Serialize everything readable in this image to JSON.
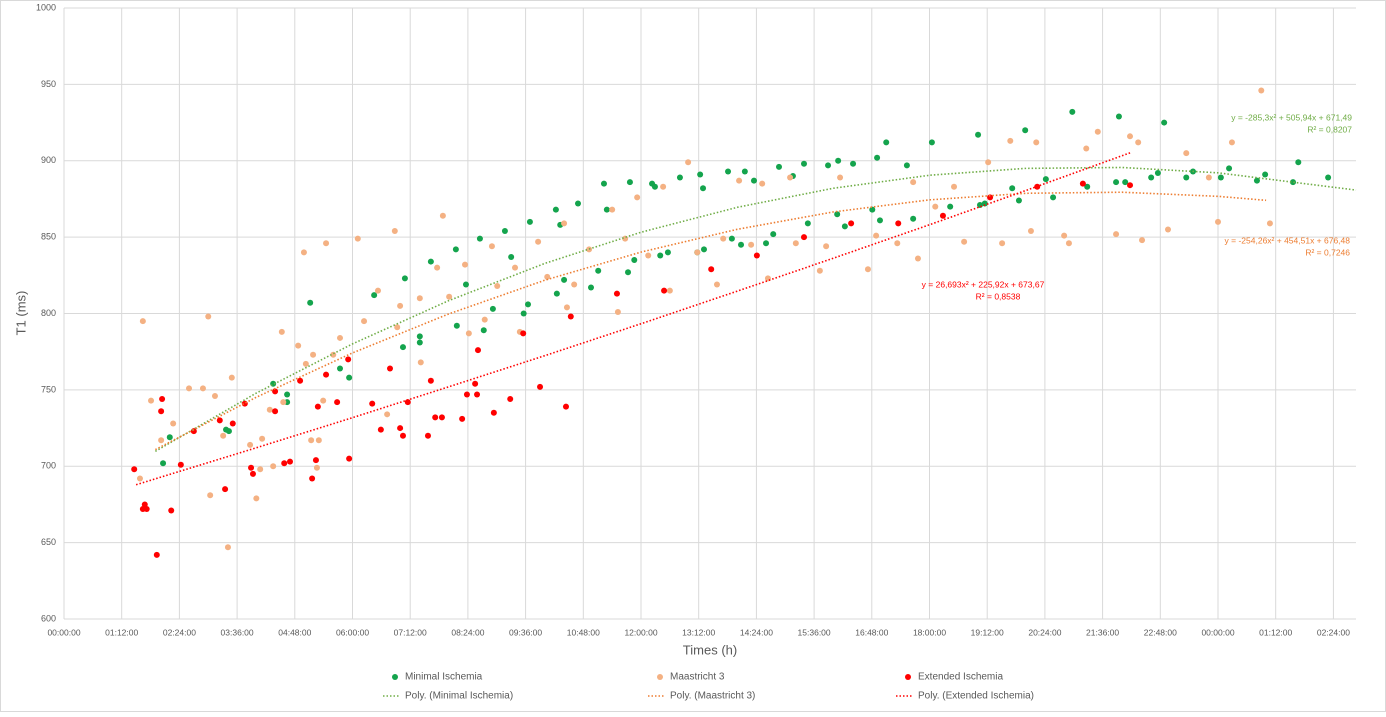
{
  "chart_data": {
    "type": "scatter",
    "xlabel": "Times (h)",
    "ylabel": "T1 (ms)",
    "xlim": [
      0,
      26.87
    ],
    "ylim": [
      600,
      1000
    ],
    "yticks": [
      600,
      650,
      700,
      750,
      800,
      850,
      900,
      950,
      1000
    ],
    "xticks": [
      {
        "value": 0,
        "label": "00:00:00"
      },
      {
        "value": 1.2,
        "label": "01:12:00"
      },
      {
        "value": 2.4,
        "label": "02:24:00"
      },
      {
        "value": 3.6,
        "label": "03:36:00"
      },
      {
        "value": 4.8,
        "label": "04:48:00"
      },
      {
        "value": 6,
        "label": "06:00:00"
      },
      {
        "value": 7.2,
        "label": "07:12:00"
      },
      {
        "value": 8.4,
        "label": "08:24:00"
      },
      {
        "value": 9.6,
        "label": "09:36:00"
      },
      {
        "value": 10.8,
        "label": "10:48:00"
      },
      {
        "value": 12,
        "label": "12:00:00"
      },
      {
        "value": 13.2,
        "label": "13:12:00"
      },
      {
        "value": 14.4,
        "label": "14:24:00"
      },
      {
        "value": 15.6,
        "label": "15:36:00"
      },
      {
        "value": 16.8,
        "label": "16:48:00"
      },
      {
        "value": 18,
        "label": "18:00:00"
      },
      {
        "value": 19.2,
        "label": "19:12:00"
      },
      {
        "value": 20.4,
        "label": "20:24:00"
      },
      {
        "value": 21.6,
        "label": "21:36:00"
      },
      {
        "value": 22.8,
        "label": "22:48:00"
      },
      {
        "value": 24,
        "label": "00:00:00"
      },
      {
        "value": 25.2,
        "label": "01:12:00"
      },
      {
        "value": 26.4,
        "label": "02:24:00"
      }
    ],
    "grid": true,
    "legend": "bottom",
    "series": [
      {
        "name": "Minimal Ischemia",
        "color": "#14a44d",
        "x": [
          2.06,
          2.2,
          3.37,
          3.43,
          4.35,
          4.64,
          4.64,
          5.12,
          5.74,
          5.93,
          6.45,
          7.05,
          7.09,
          7.4,
          7.4,
          7.63,
          8.15,
          8.36,
          8.17,
          8.65,
          8.73,
          8.92,
          9.17,
          9.3,
          9.56,
          9.65,
          9.69,
          10.23,
          10.25,
          10.32,
          10.4,
          10.69,
          10.96,
          11.11,
          11.23,
          11.29,
          11.73,
          11.77,
          11.86,
          12.23,
          12.29,
          12.4,
          12.56,
          12.81,
          13.17,
          13.23,
          13.29,
          13.31,
          13.81,
          13.89,
          14.08,
          14.16,
          14.35,
          14.6,
          14.75,
          14.87,
          15.16,
          15.39,
          15.47,
          15.89,
          16.1,
          16.08,
          16.24,
          16.41,
          16.81,
          16.91,
          16.97,
          17.1,
          17.53,
          17.66,
          18.05,
          18.43,
          19.01,
          19.05,
          19.15,
          19.72,
          19.86,
          19.99,
          20.42,
          20.57,
          20.97,
          21.28,
          21.88,
          21.94,
          22.07,
          22.61,
          22.75,
          22.88,
          23.34,
          23.48,
          24.06,
          24.23,
          24.81,
          24.98,
          25.67,
          25.56,
          26.29
        ],
        "values": [
          702,
          719,
          724,
          723,
          754,
          742,
          747,
          807,
          764,
          758,
          812,
          778,
          823,
          781,
          785,
          834,
          842,
          819,
          792,
          849,
          789,
          803,
          854,
          837,
          800,
          806,
          860,
          868,
          813,
          858,
          822,
          872,
          817,
          828,
          885,
          868,
          827,
          886,
          835,
          885,
          883,
          838,
          840,
          889,
          840,
          891,
          882,
          842,
          893,
          849,
          845,
          893,
          887,
          846,
          852,
          896,
          890,
          898,
          859,
          897,
          900,
          865,
          857,
          898,
          868,
          902,
          861,
          912,
          897,
          862,
          912,
          870,
          917,
          871,
          872,
          882,
          874,
          920,
          888,
          876,
          932,
          883,
          886,
          929,
          886,
          889,
          892,
          925,
          889,
          893,
          889,
          895,
          887,
          891,
          899,
          886,
          889
        ]
      },
      {
        "name": "Maastricht 3",
        "color": "#f4b183",
        "x": [
          1.64,
          1.58,
          1.81,
          2.02,
          2.27,
          2.6,
          2.89,
          3.0,
          3.04,
          3.14,
          3.31,
          3.41,
          3.49,
          3.87,
          4.0,
          4.08,
          4.12,
          4.28,
          4.35,
          4.53,
          4.56,
          4.87,
          4.99,
          5.03,
          5.14,
          5.18,
          5.26,
          5.3,
          5.39,
          5.45,
          5.6,
          5.74,
          6.11,
          6.24,
          6.53,
          6.72,
          6.88,
          6.93,
          6.99,
          7.4,
          7.42,
          7.76,
          7.88,
          8.01,
          8.34,
          8.42,
          8.75,
          8.9,
          9.01,
          9.38,
          9.48,
          9.86,
          10.05,
          10.4,
          10.46,
          10.61,
          10.92,
          11.4,
          11.52,
          11.67,
          11.92,
          12.15,
          12.46,
          12.6,
          12.98,
          13.17,
          13.58,
          13.71,
          14.04,
          14.29,
          14.52,
          14.64,
          15.1,
          15.22,
          15.72,
          15.85,
          16.14,
          16.72,
          16.89,
          17.33,
          17.66,
          17.76,
          18.12,
          18.51,
          18.72,
          19.22,
          19.51,
          19.68,
          20.11,
          20.22,
          20.8,
          20.9,
          21.26,
          21.5,
          21.88,
          22.17,
          22.34,
          22.42,
          22.96,
          23.34,
          23.81,
          24.0,
          24.29,
          24.9,
          25.08
        ],
        "values": [
          795,
          692,
          743,
          717,
          728,
          751,
          751,
          798,
          681,
          746,
          720,
          647,
          758,
          714,
          679,
          698,
          718,
          737,
          700,
          788,
          742,
          779,
          840,
          767,
          717,
          773,
          699,
          717,
          743,
          846,
          773,
          784,
          849,
          795,
          815,
          734,
          854,
          791,
          805,
          810,
          768,
          830,
          864,
          811,
          832,
          787,
          796,
          844,
          818,
          830,
          788,
          847,
          824,
          859,
          804,
          819,
          842,
          868,
          801,
          849,
          876,
          838,
          883,
          815,
          899,
          840,
          819,
          849,
          887,
          845,
          885,
          823,
          889,
          846,
          828,
          844,
          889,
          829,
          851,
          846,
          886,
          836,
          870,
          883,
          847,
          899,
          846,
          913,
          854,
          912,
          851,
          846,
          908,
          919,
          852,
          916,
          912,
          848,
          855,
          905,
          889,
          860,
          912,
          946,
          859
        ]
      },
      {
        "name": "Extended Ischemia",
        "color": "#ff0000",
        "x": [
          1.46,
          1.68,
          1.72,
          1.64,
          1.93,
          2.04,
          2.02,
          2.23,
          2.43,
          2.7,
          3.24,
          3.35,
          3.51,
          3.76,
          3.89,
          3.93,
          4.39,
          4.39,
          4.58,
          4.7,
          4.91,
          5.16,
          5.24,
          5.28,
          5.45,
          5.68,
          5.91,
          5.93,
          6.41,
          6.59,
          6.78,
          6.99,
          7.05,
          7.15,
          7.57,
          7.63,
          7.72,
          7.86,
          8.28,
          8.38,
          8.55,
          8.59,
          8.61,
          8.94,
          9.28,
          9.55,
          9.9,
          10.44,
          10.54,
          11.5,
          12.48,
          13.46,
          14.41,
          15.39,
          16.37,
          17.35,
          18.28,
          19.26,
          20.24,
          21.19,
          22.17
        ],
        "values": [
          698,
          675,
          672,
          672,
          642,
          744,
          736,
          671,
          701,
          723,
          730,
          685,
          728,
          741,
          699,
          695,
          749,
          736,
          702,
          703,
          756,
          692,
          704,
          739,
          760,
          742,
          770,
          705,
          741,
          724,
          764,
          725,
          720,
          742,
          720,
          756,
          732,
          732,
          731,
          747,
          754,
          747,
          776,
          735,
          744,
          787,
          752,
          739,
          798,
          813,
          815,
          829,
          838,
          850,
          859,
          859,
          864,
          876,
          883,
          885,
          884
        ]
      }
    ],
    "trendlines": [
      {
        "name": "Poly. (Minimal Ischemia)",
        "color": "#70ad47",
        "x": [
          1.9,
          4,
          6,
          8,
          10,
          12,
          14,
          16,
          18,
          20,
          22,
          24,
          26.87
        ],
        "values": [
          709.8,
          747.9,
          780.1,
          808.4,
          832.8,
          853.2,
          869.5,
          882.0,
          890.5,
          895.0,
          895.6,
          892.1,
          880.8
        ],
        "equation": "y = -285,3x² + 505,94x + 671,49",
        "r_squared": "R² = 0,8207"
      },
      {
        "name": "Poly. (Maastricht 3)",
        "color": "#ed7d31",
        "x": [
          1.9,
          4,
          6,
          8,
          10,
          12,
          14,
          16,
          18,
          20,
          22,
          24,
          25
        ],
        "values": [
          710.9,
          745.2,
          774.2,
          799.7,
          821.8,
          840.2,
          855.1,
          866.5,
          874.4,
          878.7,
          879.4,
          876.7,
          874.1
        ],
        "equation": "y = -254,26x² + 454,51x + 676,48",
        "r_squared": "R² = 0,7246"
      },
      {
        "name": "Poly. (Extended Ischemia)",
        "color": "#ff0000",
        "x": [
          1.5,
          4,
          6,
          8,
          10,
          12,
          14,
          16,
          18,
          20,
          22.2
        ],
        "values": [
          687.9,
          712.1,
          731.8,
          752.0,
          772.4,
          793.3,
          814.6,
          836.2,
          858.1,
          880.5,
          905.5
        ],
        "equation": "y = 26,693x² + 225,92x + 673,67",
        "r_squared": "R² = 0,8538"
      }
    ]
  }
}
